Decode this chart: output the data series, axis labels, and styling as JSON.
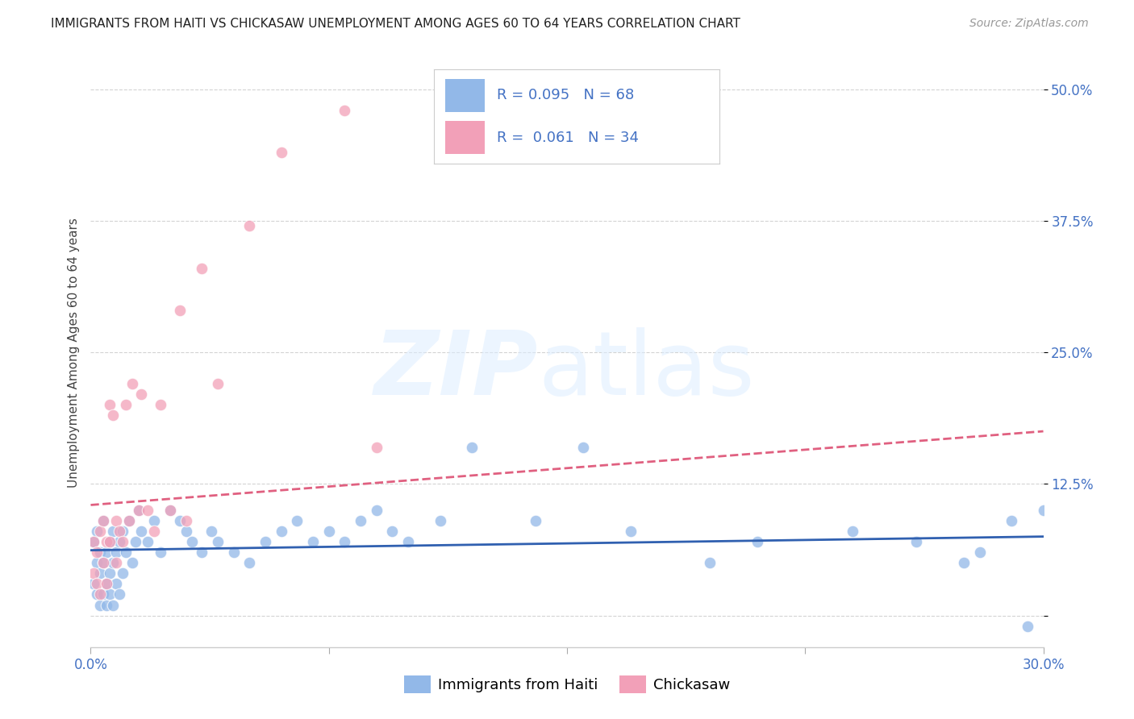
{
  "title": "IMMIGRANTS FROM HAITI VS CHICKASAW UNEMPLOYMENT AMONG AGES 60 TO 64 YEARS CORRELATION CHART",
  "source": "Source: ZipAtlas.com",
  "ylabel": "Unemployment Among Ages 60 to 64 years",
  "xlim": [
    0.0,
    0.3
  ],
  "ylim": [
    -0.03,
    0.53
  ],
  "yticks": [
    0.0,
    0.125,
    0.25,
    0.375,
    0.5
  ],
  "ytick_labels": [
    "",
    "12.5%",
    "25.0%",
    "37.5%",
    "50.0%"
  ],
  "xticks": [
    0.0,
    0.075,
    0.15,
    0.225,
    0.3
  ],
  "xtick_labels": [
    "0.0%",
    "",
    "",
    "",
    "30.0%"
  ],
  "haiti_color": "#92b8e8",
  "chickasaw_color": "#f2a0b8",
  "haiti_R": 0.095,
  "haiti_N": 68,
  "chickasaw_R": 0.061,
  "chickasaw_N": 34,
  "background_color": "#ffffff",
  "grid_color": "#c8c8c8",
  "haiti_trendline_color": "#3060b0",
  "chickasaw_trendline_color": "#e06080",
  "haiti_scatter_x": [
    0.001,
    0.001,
    0.002,
    0.002,
    0.002,
    0.003,
    0.003,
    0.003,
    0.004,
    0.004,
    0.004,
    0.005,
    0.005,
    0.005,
    0.006,
    0.006,
    0.006,
    0.007,
    0.007,
    0.007,
    0.008,
    0.008,
    0.009,
    0.009,
    0.01,
    0.01,
    0.011,
    0.012,
    0.013,
    0.014,
    0.015,
    0.016,
    0.018,
    0.02,
    0.022,
    0.025,
    0.028,
    0.03,
    0.032,
    0.035,
    0.038,
    0.04,
    0.045,
    0.05,
    0.055,
    0.06,
    0.065,
    0.07,
    0.075,
    0.08,
    0.085,
    0.09,
    0.095,
    0.1,
    0.11,
    0.12,
    0.14,
    0.155,
    0.17,
    0.195,
    0.21,
    0.24,
    0.26,
    0.275,
    0.28,
    0.29,
    0.295,
    0.3
  ],
  "haiti_scatter_y": [
    0.03,
    0.07,
    0.02,
    0.05,
    0.08,
    0.01,
    0.04,
    0.06,
    0.02,
    0.05,
    0.09,
    0.03,
    0.06,
    0.01,
    0.04,
    0.07,
    0.02,
    0.05,
    0.08,
    0.01,
    0.06,
    0.03,
    0.07,
    0.02,
    0.08,
    0.04,
    0.06,
    0.09,
    0.05,
    0.07,
    0.1,
    0.08,
    0.07,
    0.09,
    0.06,
    0.1,
    0.09,
    0.08,
    0.07,
    0.06,
    0.08,
    0.07,
    0.06,
    0.05,
    0.07,
    0.08,
    0.09,
    0.07,
    0.08,
    0.07,
    0.09,
    0.1,
    0.08,
    0.07,
    0.09,
    0.16,
    0.09,
    0.16,
    0.08,
    0.05,
    0.07,
    0.08,
    0.07,
    0.05,
    0.06,
    0.09,
    -0.01,
    0.1
  ],
  "chickasaw_scatter_x": [
    0.001,
    0.001,
    0.002,
    0.002,
    0.003,
    0.003,
    0.004,
    0.004,
    0.005,
    0.005,
    0.006,
    0.006,
    0.007,
    0.008,
    0.008,
    0.009,
    0.01,
    0.011,
    0.012,
    0.013,
    0.015,
    0.016,
    0.018,
    0.02,
    0.022,
    0.025,
    0.028,
    0.03,
    0.035,
    0.04,
    0.05,
    0.06,
    0.08,
    0.09
  ],
  "chickasaw_scatter_y": [
    0.04,
    0.07,
    0.03,
    0.06,
    0.08,
    0.02,
    0.09,
    0.05,
    0.07,
    0.03,
    0.2,
    0.07,
    0.19,
    0.09,
    0.05,
    0.08,
    0.07,
    0.2,
    0.09,
    0.22,
    0.1,
    0.21,
    0.1,
    0.08,
    0.2,
    0.1,
    0.29,
    0.09,
    0.33,
    0.22,
    0.37,
    0.44,
    0.48,
    0.16
  ],
  "haiti_trend_x0": 0.0,
  "haiti_trend_x1": 0.3,
  "haiti_trend_y0": 0.062,
  "haiti_trend_y1": 0.075,
  "chickasaw_trend_x0": 0.0,
  "chickasaw_trend_x1": 0.3,
  "chickasaw_trend_y0": 0.105,
  "chickasaw_trend_y1": 0.175
}
